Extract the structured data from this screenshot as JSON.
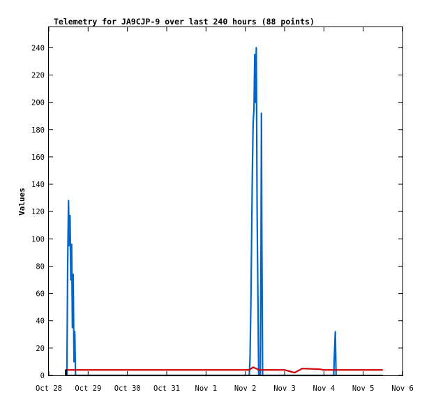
{
  "chart_data": {
    "type": "line",
    "title": "Telemetry for JA9CJP-9 over last 240 hours (88 points)",
    "ylabel": "Values",
    "xlabel": "",
    "ylim": [
      0,
      255
    ],
    "xlim": [
      "Oct 28",
      "Nov 6"
    ],
    "x_ticks": [
      "Oct 28",
      "Oct 29",
      "Oct 30",
      "Oct 31",
      "Nov 1",
      "Nov 2",
      "Nov 3",
      "Nov 4",
      "Nov 5",
      "Nov 6"
    ],
    "y_ticks": [
      0,
      20,
      40,
      60,
      80,
      100,
      120,
      140,
      160,
      180,
      200,
      220,
      240
    ],
    "grid": false,
    "legend": "none",
    "series": [
      {
        "color": "#0066cc",
        "points": [
          [
            0.46,
            0
          ],
          [
            0.48,
            80
          ],
          [
            0.5,
            128
          ],
          [
            0.52,
            95
          ],
          [
            0.54,
            117
          ],
          [
            0.56,
            70
          ],
          [
            0.58,
            96
          ],
          [
            0.6,
            35
          ],
          [
            0.62,
            74
          ],
          [
            0.64,
            10
          ],
          [
            0.66,
            32
          ],
          [
            0.68,
            0
          ],
          [
            5.1,
            0
          ],
          [
            5.12,
            12
          ],
          [
            5.14,
            50
          ],
          [
            5.16,
            100
          ],
          [
            5.18,
            150
          ],
          [
            5.2,
            185
          ],
          [
            5.22,
            195
          ],
          [
            5.24,
            235
          ],
          [
            5.26,
            200
          ],
          [
            5.28,
            240
          ],
          [
            5.3,
            120
          ],
          [
            5.32,
            60
          ],
          [
            5.34,
            0
          ],
          [
            5.38,
            0
          ],
          [
            5.4,
            97
          ],
          [
            5.41,
            192
          ],
          [
            5.42,
            110
          ],
          [
            5.44,
            0
          ],
          [
            7.25,
            0
          ],
          [
            7.27,
            17
          ],
          [
            7.29,
            32
          ],
          [
            7.31,
            0
          ]
        ]
      },
      {
        "color": "#cc0000",
        "points": [
          [
            0.46,
            4
          ],
          [
            1.0,
            4
          ],
          [
            2.0,
            4
          ],
          [
            3.0,
            4
          ],
          [
            4.0,
            4
          ],
          [
            5.0,
            4
          ],
          [
            5.1,
            4
          ],
          [
            5.2,
            6
          ],
          [
            5.35,
            4
          ],
          [
            6.0,
            4
          ],
          [
            6.25,
            2
          ],
          [
            6.45,
            5
          ],
          [
            6.9,
            4.5
          ],
          [
            7.0,
            4
          ],
          [
            8.0,
            4
          ],
          [
            8.5,
            4
          ]
        ]
      },
      {
        "color": "#000000",
        "points": [
          [
            0.43,
            0
          ],
          [
            0.43,
            4
          ],
          [
            0.44,
            4
          ],
          [
            0.44,
            0
          ],
          [
            0.46,
            0
          ],
          [
            8.5,
            0
          ]
        ]
      }
    ]
  }
}
